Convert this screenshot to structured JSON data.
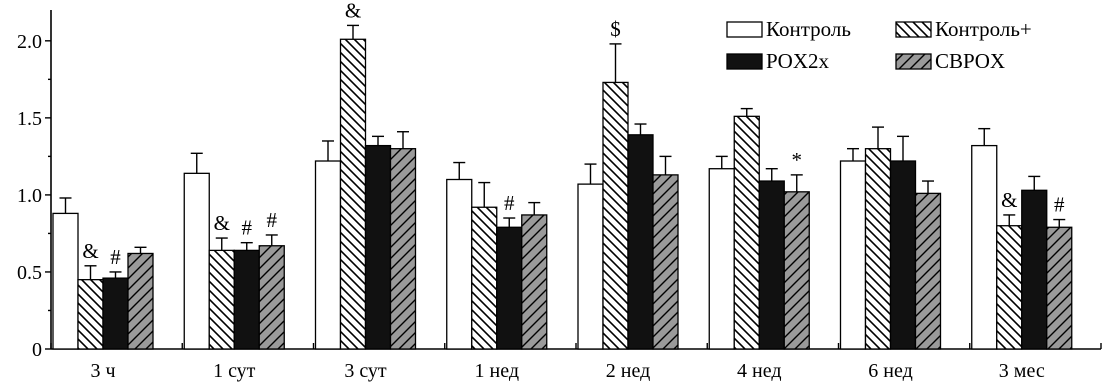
{
  "chart_data": {
    "type": "bar",
    "categories": [
      "3 ч",
      "1 сут",
      "3 сут",
      "1 нед",
      "2 нед",
      "4 нед",
      "6 нед",
      "3 мес"
    ],
    "series": [
      {
        "name": "Контроль",
        "values": [
          0.88,
          1.14,
          1.22,
          1.1,
          1.07,
          1.17,
          1.22,
          1.32
        ],
        "errors": [
          0.1,
          0.13,
          0.13,
          0.11,
          0.13,
          0.08,
          0.08,
          0.11
        ],
        "fill": "#ffffff",
        "pattern": "none"
      },
      {
        "name": "Контроль+",
        "values": [
          0.45,
          0.64,
          2.01,
          0.92,
          1.73,
          1.51,
          1.3,
          0.8
        ],
        "errors": [
          0.09,
          0.08,
          0.09,
          0.16,
          0.25,
          0.05,
          0.14,
          0.07
        ],
        "fill": "#ffffff",
        "pattern": "hatch-back"
      },
      {
        "name": "POX2x",
        "values": [
          0.46,
          0.64,
          1.32,
          0.79,
          1.39,
          1.09,
          1.22,
          1.03
        ],
        "errors": [
          0.04,
          0.05,
          0.06,
          0.06,
          0.07,
          0.08,
          0.16,
          0.09
        ],
        "fill": "#111111",
        "pattern": "solid"
      },
      {
        "name": "CBPOX",
        "values": [
          0.62,
          0.67,
          1.3,
          0.87,
          1.13,
          1.02,
          1.01,
          0.79
        ],
        "errors": [
          0.04,
          0.07,
          0.11,
          0.08,
          0.12,
          0.11,
          0.08,
          0.05
        ],
        "fill": "#9a9a9a",
        "pattern": "hatch-fwd"
      }
    ],
    "annotations": [
      {
        "category": 0,
        "series": 1,
        "text": "&"
      },
      {
        "category": 0,
        "series": 2,
        "text": "#"
      },
      {
        "category": 1,
        "series": 1,
        "text": "&"
      },
      {
        "category": 1,
        "series": 2,
        "text": "#"
      },
      {
        "category": 1,
        "series": 3,
        "text": "#"
      },
      {
        "category": 2,
        "series": 1,
        "text": "&"
      },
      {
        "category": 3,
        "series": 2,
        "text": "#"
      },
      {
        "category": 4,
        "series": 1,
        "text": "$"
      },
      {
        "category": 5,
        "series": 3,
        "text": "*"
      },
      {
        "category": 7,
        "series": 1,
        "text": "&"
      },
      {
        "category": 7,
        "series": 3,
        "text": "#"
      }
    ],
    "yticks": [
      "0",
      "0.5",
      "1.0",
      "1.5",
      "2.0"
    ],
    "ylim": [
      0,
      2.2
    ],
    "legend_position": "top-right",
    "grid": false,
    "title": "",
    "xlabel": "",
    "ylabel": ""
  }
}
